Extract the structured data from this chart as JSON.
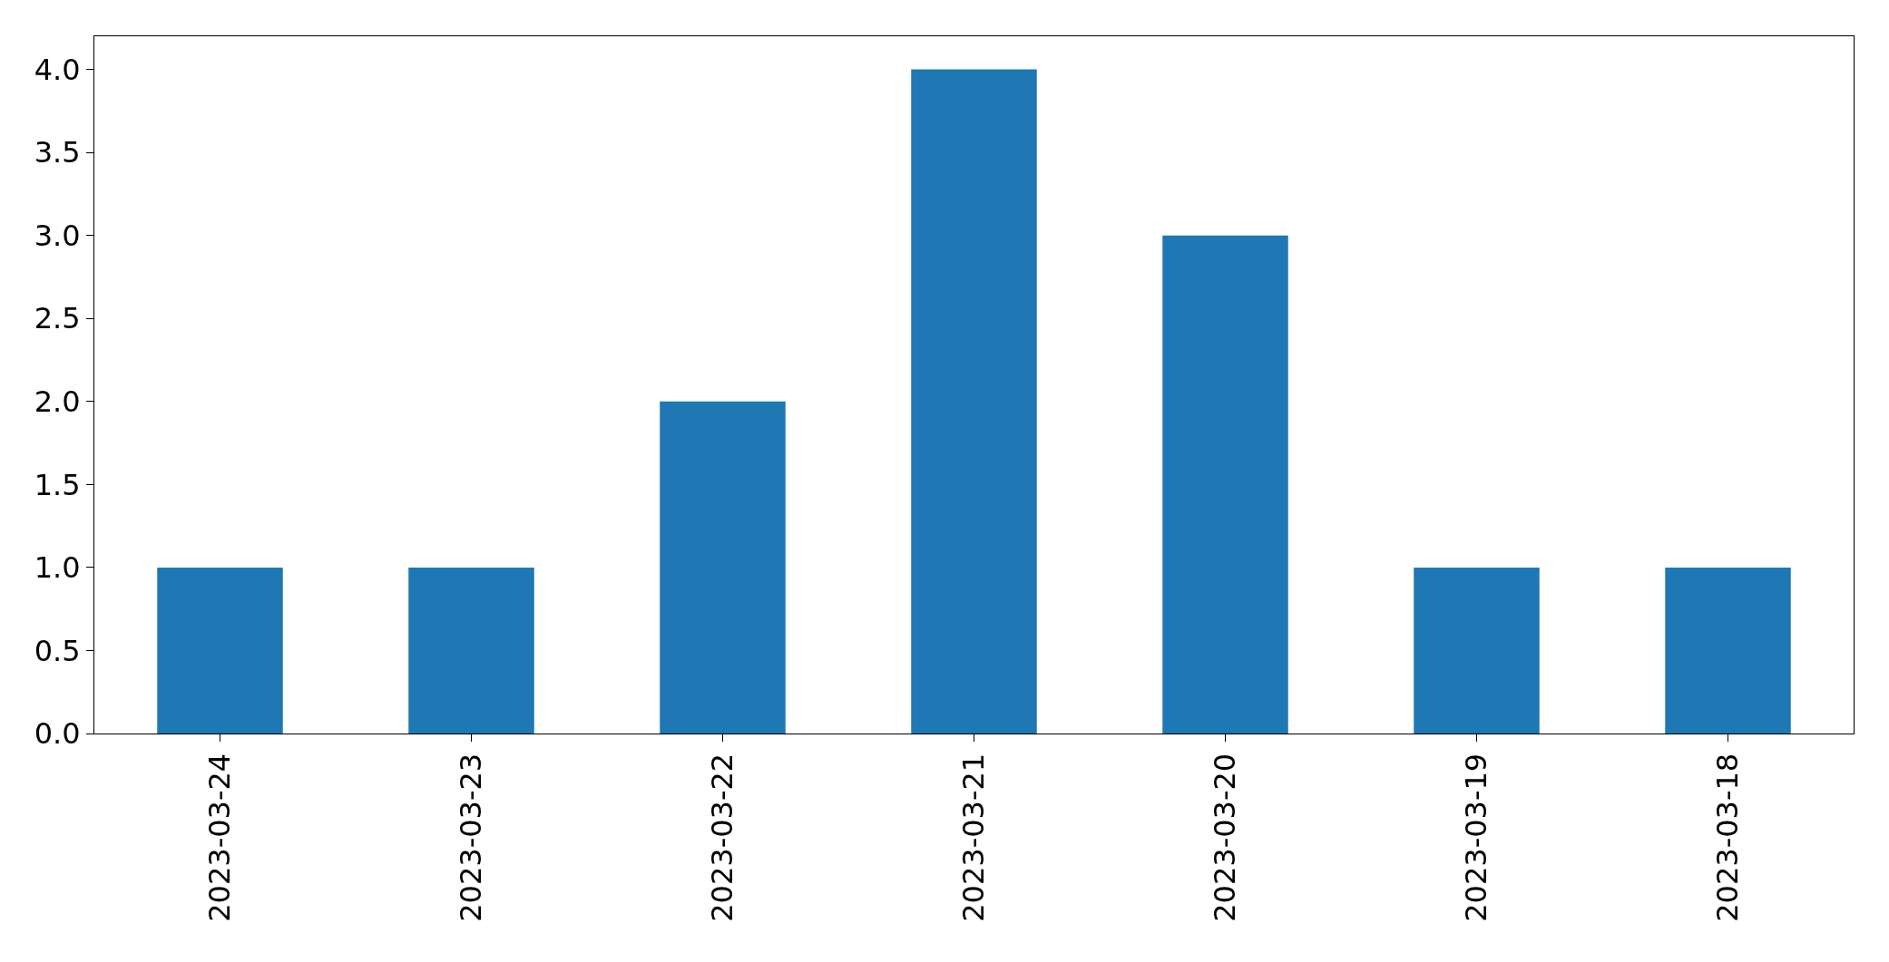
{
  "chart_data": {
    "type": "bar",
    "categories": [
      "2023-03-24",
      "2023-03-23",
      "2023-03-22",
      "2023-03-21",
      "2023-03-20",
      "2023-03-19",
      "2023-03-18"
    ],
    "values": [
      1,
      1,
      2,
      4,
      3,
      1,
      1
    ],
    "color": "#1f77b4",
    "ylim": [
      0,
      4.2
    ],
    "yticks": [
      {
        "value": 0,
        "label": "0.0"
      },
      {
        "value": 0.5,
        "label": "0.5"
      },
      {
        "value": 1,
        "label": "1.0"
      },
      {
        "value": 1.5,
        "label": "1.5"
      },
      {
        "value": 2,
        "label": "2.0"
      },
      {
        "value": 2.5,
        "label": "2.5"
      },
      {
        "value": 3,
        "label": "3.0"
      },
      {
        "value": 3.5,
        "label": "3.5"
      },
      {
        "value": 4,
        "label": "4.0"
      }
    ]
  }
}
